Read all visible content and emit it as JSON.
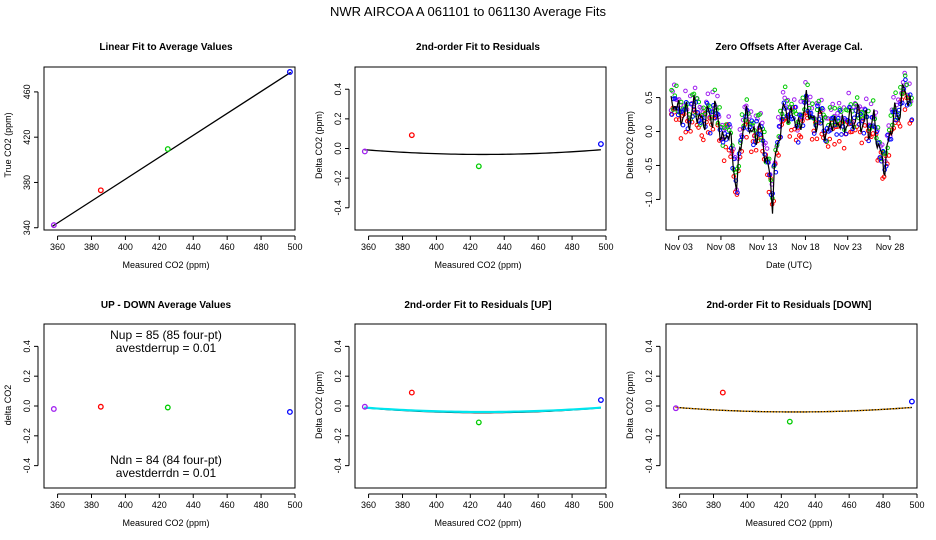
{
  "page": {
    "title": "NWR   AIRCOA A   061101 to 061130   Average Fits"
  },
  "colors": {
    "purple": "#a020f0",
    "red": "#ff0000",
    "green": "#00cc00",
    "blue": "#0000ff",
    "black": "#000000",
    "cyan": "#00e5ee",
    "orange": "#ffa500"
  },
  "chart_data": [
    {
      "id": "linear",
      "type": "scatter",
      "title": "Linear Fit to Average Values",
      "xlabel": "Measured CO2 (ppm)",
      "ylabel": "True CO2 (ppm)",
      "xlim": [
        352,
        500
      ],
      "ylim": [
        338,
        482
      ],
      "xticks": [
        360,
        380,
        400,
        420,
        440,
        460,
        480,
        500
      ],
      "yticks": [
        340,
        380,
        420,
        460
      ],
      "points": [
        {
          "x": 357.8,
          "y": 342.3,
          "color": "purple"
        },
        {
          "x": 385.5,
          "y": 373.1,
          "color": "red"
        },
        {
          "x": 425.0,
          "y": 409.5,
          "color": "green"
        },
        {
          "x": 497.0,
          "y": 477.6,
          "color": "blue"
        }
      ],
      "lines": [
        {
          "x": [
            357.0,
            497.5
          ],
          "y": [
            341.3,
            477.3
          ],
          "color": "black"
        }
      ]
    },
    {
      "id": "resid",
      "type": "scatter",
      "title": "2nd-order Fit to Residuals",
      "xlabel": "Measured CO2 (ppm)",
      "ylabel": "Delta CO2 (ppm)",
      "xlim": [
        352,
        500
      ],
      "ylim": [
        -0.55,
        0.55
      ],
      "xticks": [
        360,
        380,
        400,
        420,
        440,
        460,
        480,
        500
      ],
      "yticks": [
        -0.4,
        -0.2,
        0.0,
        0.2,
        0.4
      ],
      "points": [
        {
          "x": 357.8,
          "y": -0.02,
          "color": "purple"
        },
        {
          "x": 385.5,
          "y": 0.09,
          "color": "red"
        },
        {
          "x": 425.0,
          "y": -0.12,
          "color": "green"
        },
        {
          "x": 497.0,
          "y": 0.03,
          "color": "blue"
        }
      ],
      "lines": [
        {
          "quad": [
            0.03,
            6.5e-06,
            427.5,
            -0.04
          ],
          "x": [
            357.5,
            497.0
          ],
          "color": "black"
        }
      ]
    },
    {
      "id": "zero",
      "type": "line",
      "title": "Zero Offsets After Average Cal.",
      "xlabel": "Date (UTC)",
      "ylabel": "Delta CO2 (ppm)",
      "xlim": [
        0.5,
        30.2
      ],
      "ylim": [
        -1.45,
        0.95
      ],
      "xticks": [
        2,
        7,
        12,
        17,
        22,
        27
      ],
      "xticklabels": [
        "Nov 03",
        "Nov 08",
        "Nov 13",
        "Nov 18",
        "Nov 23",
        "Nov 28"
      ],
      "yticks": [
        -1.0,
        -0.5,
        0.0,
        0.5
      ],
      "profile": [
        [
          1.1,
          0.35
        ],
        [
          1.6,
          0.45
        ],
        [
          2.2,
          0.2
        ],
        [
          2.8,
          0.3
        ],
        [
          3.3,
          0.15
        ],
        [
          3.8,
          0.4
        ],
        [
          4.3,
          0.25
        ],
        [
          4.8,
          0.1
        ],
        [
          5.4,
          0.3
        ],
        [
          5.8,
          0.15
        ],
        [
          6.3,
          0.35
        ],
        [
          6.8,
          0.1
        ],
        [
          7.3,
          -0.2
        ],
        [
          7.8,
          0.05
        ],
        [
          8.2,
          -0.2
        ],
        [
          8.6,
          -0.6
        ],
        [
          8.9,
          -0.85
        ],
        [
          9.2,
          -0.3
        ],
        [
          9.6,
          0.05
        ],
        [
          10.1,
          0.25
        ],
        [
          10.6,
          0.0
        ],
        [
          11.1,
          -0.1
        ],
        [
          11.5,
          0.1
        ],
        [
          12.0,
          -0.15
        ],
        [
          12.5,
          -0.5
        ],
        [
          12.9,
          -0.75
        ],
        [
          13.1,
          -1.05
        ],
        [
          13.3,
          -0.6
        ],
        [
          13.7,
          -0.2
        ],
        [
          14.1,
          0.1
        ],
        [
          14.6,
          0.4
        ],
        [
          15.1,
          0.15
        ],
        [
          15.6,
          0.3
        ],
        [
          16.1,
          0.0
        ],
        [
          16.6,
          0.2
        ],
        [
          17.1,
          0.45
        ],
        [
          17.6,
          0.25
        ],
        [
          18.1,
          0.05
        ],
        [
          18.6,
          0.3
        ],
        [
          19.1,
          0.1
        ],
        [
          19.6,
          -0.1
        ],
        [
          20.1,
          0.2
        ],
        [
          20.6,
          0.05
        ],
        [
          21.1,
          0.2
        ],
        [
          21.6,
          0.0
        ],
        [
          22.1,
          0.25
        ],
        [
          22.6,
          0.1
        ],
        [
          23.1,
          0.3
        ],
        [
          23.6,
          0.1
        ],
        [
          24.1,
          0.2
        ],
        [
          24.6,
          0.0
        ],
        [
          25.1,
          0.2
        ],
        [
          25.6,
          -0.2
        ],
        [
          26.0,
          -0.4
        ],
        [
          26.4,
          -0.5
        ],
        [
          26.8,
          -0.2
        ],
        [
          27.2,
          0.1
        ],
        [
          27.6,
          0.3
        ],
        [
          28.0,
          0.2
        ],
        [
          28.4,
          0.5
        ],
        [
          28.8,
          0.65
        ],
        [
          29.2,
          0.45
        ],
        [
          29.5,
          0.3
        ]
      ],
      "series": [
        {
          "color": "purple",
          "offset": 0.15
        },
        {
          "color": "red",
          "offset": -0.12
        },
        {
          "color": "green",
          "offset": 0.1
        },
        {
          "color": "blue",
          "offset": 0.0
        },
        {
          "color": "black",
          "offset": 0.0,
          "line": true
        }
      ]
    },
    {
      "id": "updown",
      "type": "scatter",
      "title": "UP - DOWN Average Values",
      "xlabel": "Measured CO2 (ppm)",
      "ylabel": "delta CO2",
      "xlim": [
        352,
        500
      ],
      "ylim": [
        -0.55,
        0.55
      ],
      "xticks": [
        360,
        380,
        400,
        420,
        440,
        460,
        480,
        500
      ],
      "yticks": [
        -0.4,
        -0.2,
        0.0,
        0.2,
        0.4
      ],
      "points": [
        {
          "x": 357.8,
          "y": -0.02,
          "color": "purple"
        },
        {
          "x": 385.5,
          "y": -0.005,
          "color": "red"
        },
        {
          "x": 425.0,
          "y": -0.01,
          "color": "green"
        },
        {
          "x": 497.0,
          "y": -0.04,
          "color": "blue"
        }
      ],
      "annotations": [
        "Nup = 85 (85 four-pt)",
        "avestderrup =  0.01",
        "Ndn = 84 (84 four-pt)",
        "avestderrdn =  0.01"
      ]
    },
    {
      "id": "resid-up",
      "type": "scatter",
      "title": "2nd-order Fit to Residuals [UP]",
      "xlabel": "Measured CO2 (ppm)",
      "ylabel": "Delta CO2 (ppm)",
      "xlim": [
        352,
        500
      ],
      "ylim": [
        -0.55,
        0.55
      ],
      "xticks": [
        360,
        380,
        400,
        420,
        440,
        460,
        480,
        500
      ],
      "yticks": [
        -0.4,
        -0.2,
        0.0,
        0.2,
        0.4
      ],
      "points": [
        {
          "x": 357.8,
          "y": -0.005,
          "color": "purple"
        },
        {
          "x": 385.5,
          "y": 0.09,
          "color": "red"
        },
        {
          "x": 425.0,
          "y": -0.11,
          "color": "green"
        },
        {
          "x": 497.0,
          "y": 0.04,
          "color": "blue"
        }
      ],
      "lines": [
        {
          "quad": [
            0.035,
            6.7e-06,
            427.5,
            -0.045
          ],
          "x": [
            357.5,
            497.0
          ],
          "color": "black"
        },
        {
          "quad": [
            0.025,
            6e-06,
            427.5,
            -0.04
          ],
          "x": [
            357.5,
            497.0
          ],
          "color": "cyan",
          "width": 2.2
        }
      ]
    },
    {
      "id": "resid-down",
      "type": "scatter",
      "title": "2nd-order Fit to Residuals [DOWN]",
      "xlabel": "Measured CO2 (ppm)",
      "ylabel": "Delta CO2 (ppm)",
      "xlim": [
        352,
        500
      ],
      "ylim": [
        -0.55,
        0.55
      ],
      "xticks": [
        360,
        380,
        400,
        420,
        440,
        460,
        480,
        500
      ],
      "yticks": [
        -0.4,
        -0.2,
        0.0,
        0.2,
        0.4
      ],
      "points": [
        {
          "x": 357.8,
          "y": -0.015,
          "color": "purple"
        },
        {
          "x": 385.5,
          "y": 0.09,
          "color": "red"
        },
        {
          "x": 425.0,
          "y": -0.105,
          "color": "green"
        },
        {
          "x": 497.0,
          "y": 0.03,
          "color": "blue"
        }
      ],
      "lines": [
        {
          "quad": [
            0.03,
            6.3e-06,
            427.5,
            -0.04
          ],
          "x": [
            357.5,
            497.0
          ],
          "color": "black"
        },
        {
          "quad": [
            0.03,
            6.3e-06,
            427.5,
            -0.04
          ],
          "x": [
            357.5,
            497.0
          ],
          "color": "orange",
          "dotted": true
        }
      ]
    }
  ]
}
